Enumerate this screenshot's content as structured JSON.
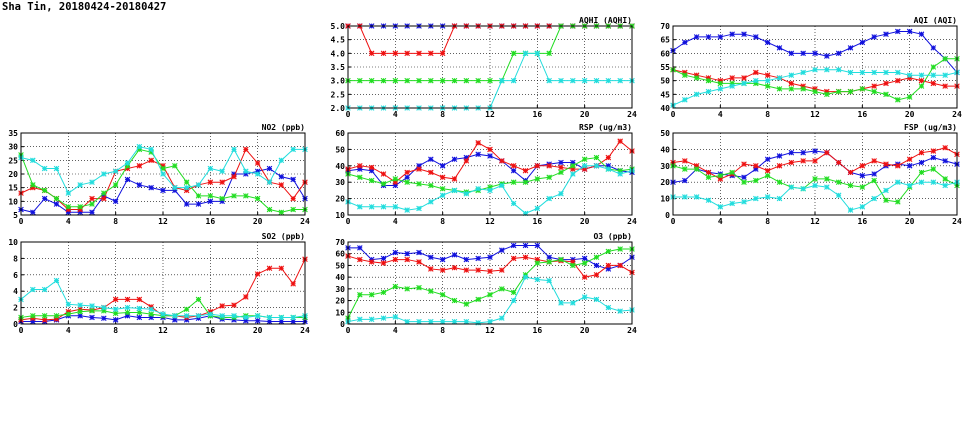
{
  "page": {
    "title": "Sha Tin, 20180424-20180427"
  },
  "colors": {
    "red": "#ee1111",
    "blue": "#1111dd",
    "green": "#22dd22",
    "cyan": "#22dddd"
  },
  "chart_data": [
    {
      "id": "aqhi",
      "type": "line",
      "title": "AQHI (AQHI)",
      "xlim": [
        0,
        24
      ],
      "xticks": [
        0,
        4,
        8,
        12,
        16,
        20,
        24
      ],
      "ylim": [
        2.0,
        5.0
      ],
      "yticks": [
        "2.0",
        "2.5",
        "3.0",
        "3.5",
        "4.0",
        "4.5",
        "5.0"
      ],
      "grid": true,
      "series": [
        {
          "color": "blue",
          "values": [
            5,
            5,
            5,
            5,
            5,
            5,
            5,
            5,
            5,
            5,
            5,
            5,
            5,
            5,
            5,
            5,
            5,
            5,
            5,
            5,
            5,
            5,
            5,
            5,
            5
          ]
        },
        {
          "color": "red",
          "values": [
            5,
            5,
            4,
            4,
            4,
            4,
            4,
            4,
            4,
            5,
            5,
            5,
            5,
            5,
            5,
            5,
            5,
            5,
            5,
            5,
            5,
            5,
            5,
            5,
            5
          ]
        },
        {
          "color": "green",
          "values": [
            3,
            3,
            3,
            3,
            3,
            3,
            3,
            3,
            3,
            3,
            3,
            3,
            3,
            3,
            4,
            4,
            4,
            4,
            5,
            5,
            5,
            5,
            5,
            5,
            5
          ]
        },
        {
          "color": "cyan",
          "values": [
            2,
            2,
            2,
            2,
            2,
            2,
            2,
            2,
            2,
            2,
            2,
            2,
            2,
            3,
            3,
            4,
            4,
            3,
            3,
            3,
            3,
            3,
            3,
            3,
            3
          ]
        }
      ]
    },
    {
      "id": "aqi",
      "type": "line",
      "title": "AQI (AQI)",
      "xlim": [
        0,
        24
      ],
      "xticks": [
        0,
        4,
        8,
        12,
        16,
        20,
        24
      ],
      "ylim": [
        40,
        70
      ],
      "yticks": [
        "40",
        "45",
        "50",
        "55",
        "60",
        "65",
        "70"
      ],
      "grid": true,
      "series": [
        {
          "color": "blue",
          "values": [
            61,
            64,
            66,
            66,
            66,
            67,
            67,
            66,
            64,
            62,
            60,
            60,
            60,
            59,
            60,
            62,
            64,
            66,
            67,
            68,
            68,
            67,
            62,
            58,
            53
          ]
        },
        {
          "color": "red",
          "values": [
            54,
            53,
            52,
            51,
            50,
            51,
            51,
            53,
            52,
            51,
            49,
            48,
            47,
            46,
            46,
            46,
            47,
            48,
            49,
            50,
            51,
            50,
            49,
            48,
            48
          ]
        },
        {
          "color": "green",
          "values": [
            54,
            52,
            51,
            50,
            49,
            49,
            49,
            49,
            48,
            47,
            47,
            47,
            46,
            45,
            46,
            46,
            47,
            46,
            45,
            43,
            44,
            48,
            55,
            58,
            58
          ]
        },
        {
          "color": "cyan",
          "values": [
            41,
            43,
            45,
            46,
            47,
            48,
            49,
            50,
            50,
            51,
            52,
            53,
            54,
            54,
            54,
            53,
            53,
            53,
            53,
            53,
            52,
            52,
            52,
            52,
            53
          ]
        }
      ]
    },
    {
      "id": "no2",
      "type": "line",
      "title": "NO2 (ppb)",
      "xlim": [
        0,
        24
      ],
      "xticks": [
        0,
        4,
        8,
        12,
        16,
        20,
        24
      ],
      "ylim": [
        5,
        35
      ],
      "yticks": [
        "5",
        "10",
        "15",
        "20",
        "25",
        "30",
        "35"
      ],
      "grid": true,
      "series": [
        {
          "color": "blue",
          "values": [
            7,
            6,
            11,
            9,
            6,
            6,
            6,
            12,
            10,
            18,
            16,
            15,
            14,
            14,
            9,
            9,
            10,
            10,
            20,
            20,
            21,
            22,
            19,
            18,
            11
          ]
        },
        {
          "color": "red",
          "values": [
            13,
            15,
            14,
            11,
            7,
            7,
            11,
            11,
            21,
            22,
            23,
            25,
            23,
            15,
            14,
            16,
            17,
            17,
            19,
            29,
            24,
            17,
            16,
            11,
            17
          ]
        },
        {
          "color": "green",
          "values": [
            27,
            16,
            14,
            11,
            8,
            8,
            9,
            13,
            16,
            23,
            29,
            28,
            22,
            23,
            17,
            12,
            12,
            11,
            12,
            12,
            11,
            7,
            6,
            7,
            7
          ]
        },
        {
          "color": "cyan",
          "values": [
            26,
            25,
            22,
            22,
            13,
            16,
            17,
            20,
            21,
            24,
            30,
            29,
            20,
            15,
            15,
            16,
            22,
            21,
            29,
            21,
            20,
            17,
            25,
            29,
            29
          ]
        }
      ]
    },
    {
      "id": "rsp",
      "type": "line",
      "title": "RSP (ug/m3)",
      "xlim": [
        0,
        24
      ],
      "xticks": [
        0,
        4,
        8,
        12,
        16,
        20,
        24
      ],
      "ylim": [
        10,
        60
      ],
      "yticks": [
        "10",
        "20",
        "30",
        "40",
        "50",
        "60"
      ],
      "grid": true,
      "series": [
        {
          "color": "blue",
          "values": [
            37,
            38,
            37,
            28,
            28,
            33,
            40,
            44,
            40,
            44,
            45,
            47,
            46,
            43,
            37,
            31,
            40,
            41,
            42,
            42,
            38,
            40,
            40,
            37,
            36
          ]
        },
        {
          "color": "red",
          "values": [
            38,
            40,
            39,
            35,
            30,
            36,
            38,
            36,
            33,
            32,
            43,
            54,
            50,
            43,
            40,
            37,
            40,
            40,
            39,
            38,
            38,
            40,
            45,
            55,
            49
          ]
        },
        {
          "color": "green",
          "values": [
            35,
            33,
            31,
            29,
            32,
            30,
            29,
            28,
            26,
            25,
            24,
            25,
            27,
            29,
            30,
            30,
            32,
            33,
            36,
            40,
            44,
            45,
            38,
            37,
            38
          ]
        },
        {
          "color": "cyan",
          "values": [
            18,
            15,
            15,
            15,
            15,
            13,
            14,
            18,
            22,
            25,
            23,
            26,
            25,
            28,
            17,
            11,
            14,
            20,
            23,
            35,
            40,
            40,
            38,
            35,
            37
          ]
        }
      ]
    },
    {
      "id": "fsp",
      "type": "line",
      "title": "FSP (ug/m3)",
      "xlim": [
        0,
        24
      ],
      "xticks": [
        0,
        4,
        8,
        12,
        16,
        20,
        24
      ],
      "ylim": [
        0,
        50
      ],
      "yticks": [
        "0",
        "10",
        "20",
        "30",
        "40",
        "50"
      ],
      "grid": true,
      "series": [
        {
          "color": "blue",
          "values": [
            20,
            21,
            28,
            26,
            25,
            24,
            23,
            28,
            34,
            36,
            38,
            38,
            39,
            38,
            32,
            26,
            24,
            25,
            30,
            31,
            30,
            32,
            35,
            33,
            31
          ]
        },
        {
          "color": "red",
          "values": [
            32,
            33,
            30,
            26,
            22,
            25,
            31,
            30,
            27,
            30,
            32,
            33,
            33,
            38,
            32,
            26,
            30,
            33,
            31,
            30,
            34,
            38,
            39,
            41,
            37
          ]
        },
        {
          "color": "green",
          "values": [
            30,
            28,
            28,
            23,
            24,
            26,
            20,
            21,
            24,
            20,
            17,
            16,
            22,
            22,
            20,
            18,
            17,
            21,
            9,
            8,
            17,
            26,
            28,
            22,
            18
          ]
        },
        {
          "color": "cyan",
          "values": [
            11,
            11,
            11,
            9,
            5,
            7,
            8,
            10,
            11,
            10,
            17,
            16,
            18,
            17,
            12,
            3,
            5,
            10,
            15,
            20,
            18,
            20,
            20,
            18,
            20
          ]
        }
      ]
    },
    {
      "id": "so2",
      "type": "line",
      "title": "SO2 (ppb)",
      "xlim": [
        0,
        24
      ],
      "xticks": [
        0,
        4,
        8,
        12,
        16,
        20,
        24
      ],
      "ylim": [
        0,
        10
      ],
      "yticks": [
        "0",
        "2",
        "4",
        "6",
        "8",
        "10"
      ],
      "grid": true,
      "series": [
        {
          "color": "blue",
          "values": [
            0.3,
            0.3,
            0.3,
            0.5,
            1.0,
            1.0,
            0.8,
            0.7,
            0.5,
            1.0,
            0.8,
            0.8,
            0.8,
            0.5,
            0.5,
            0.7,
            1.0,
            0.6,
            0.5,
            0.4,
            0.4,
            0.3,
            0.3,
            0.3,
            0.3
          ]
        },
        {
          "color": "red",
          "values": [
            0.5,
            0.7,
            0.5,
            0.6,
            1.5,
            1.8,
            1.7,
            2.0,
            3.0,
            3.0,
            3.0,
            2.1,
            1.0,
            1.0,
            0.8,
            1.0,
            1.5,
            2.2,
            2.3,
            3.3,
            6.1,
            6.8,
            6.8,
            4.9,
            7.9
          ]
        },
        {
          "color": "green",
          "values": [
            0.8,
            1.0,
            1.0,
            1.0,
            1.2,
            1.5,
            1.6,
            1.6,
            1.3,
            1.4,
            1.4,
            1.2,
            1.0,
            1.0,
            1.8,
            3.0,
            1.0,
            0.8,
            0.8,
            1.0,
            1.0,
            0.8,
            0.8,
            0.8,
            0.8
          ]
        },
        {
          "color": "cyan",
          "values": [
            3.0,
            4.2,
            4.2,
            5.3,
            2.4,
            2.3,
            2.2,
            2.0,
            1.8,
            2.0,
            1.9,
            1.8,
            1.2,
            1.0,
            1.0,
            1.0,
            1.2,
            1.0,
            1.0,
            0.8,
            1.0,
            0.8,
            0.8,
            0.8,
            1.0
          ]
        }
      ]
    },
    {
      "id": "o3",
      "type": "line",
      "title": "O3 (ppb)",
      "xlim": [
        0,
        24
      ],
      "xticks": [
        0,
        4,
        8,
        12,
        16,
        20,
        24
      ],
      "ylim": [
        0,
        70
      ],
      "yticks": [
        "0",
        "10",
        "20",
        "30",
        "40",
        "50",
        "60",
        "70"
      ],
      "grid": true,
      "series": [
        {
          "color": "blue",
          "values": [
            65,
            65,
            55,
            56,
            61,
            60,
            61,
            57,
            55,
            59,
            55,
            56,
            57,
            63,
            67,
            67,
            67,
            57,
            55,
            55,
            56,
            50,
            47,
            50,
            57
          ]
        },
        {
          "color": "red",
          "values": [
            58,
            55,
            53,
            52,
            55,
            55,
            53,
            47,
            46,
            48,
            46,
            46,
            45,
            46,
            56,
            57,
            55,
            53,
            54,
            53,
            40,
            42,
            50,
            50,
            44
          ]
        },
        {
          "color": "green",
          "values": [
            5,
            25,
            25,
            27,
            32,
            30,
            31,
            28,
            25,
            20,
            17,
            21,
            25,
            30,
            27,
            42,
            52,
            53,
            55,
            50,
            52,
            57,
            62,
            64,
            64
          ]
        },
        {
          "color": "cyan",
          "values": [
            2,
            4,
            4,
            5,
            6,
            2,
            2,
            2,
            2,
            2,
            2,
            1,
            2,
            5,
            20,
            40,
            38,
            37,
            18,
            18,
            23,
            21,
            14,
            11,
            12
          ]
        }
      ]
    }
  ]
}
